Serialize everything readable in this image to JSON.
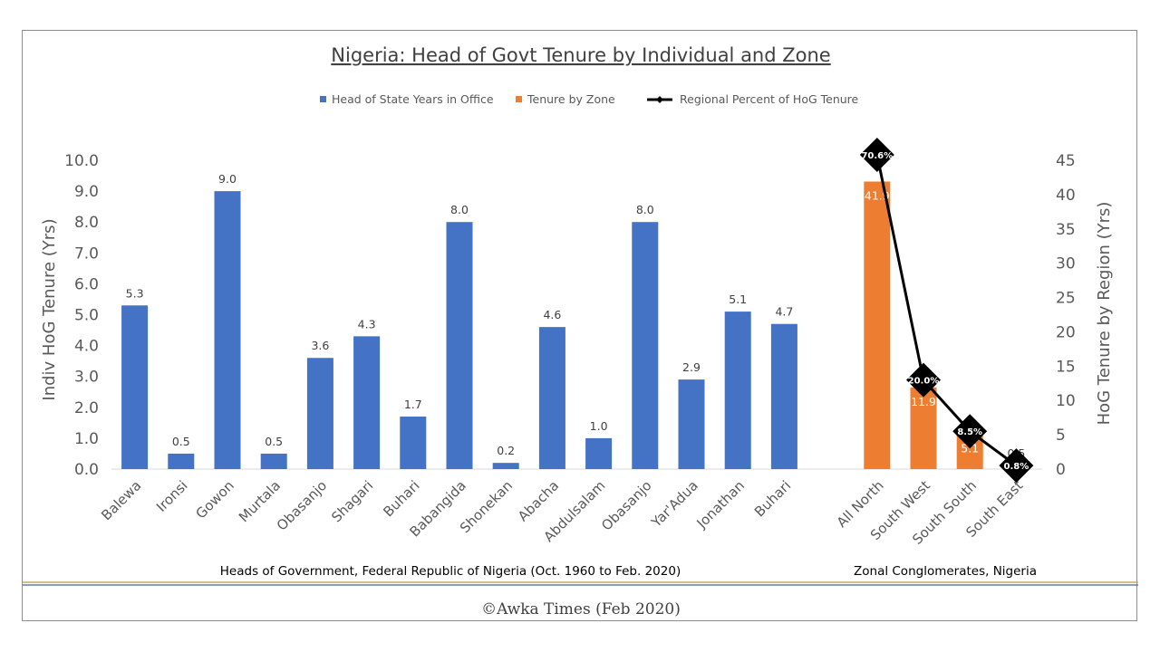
{
  "chart_data": {
    "type": "bar",
    "title": "Nigeria: Head of Govt Tenure by Individual and Zone",
    "legend": [
      {
        "name": "Head of State Years in Office",
        "color": "#4472C4",
        "kind": "bar"
      },
      {
        "name": "Tenure by Zone",
        "color": "#ED7D31",
        "kind": "bar"
      },
      {
        "name": "Regional Percent of HoG Tenure",
        "color": "#000000",
        "kind": "line"
      }
    ],
    "left_axis": {
      "title": "Indiv HoG Tenure (Yrs)",
      "min": 0,
      "max": 10,
      "step": 1,
      "ticks": [
        "0.0",
        "1.0",
        "2.0",
        "3.0",
        "4.0",
        "5.0",
        "6.0",
        "7.0",
        "8.0",
        "9.0",
        "10.0"
      ]
    },
    "right_axis": {
      "title": "HoG Tenure by Region (Yrs)",
      "min": 0,
      "max": 45,
      "step": 5,
      "ticks": [
        "0",
        "5",
        "10",
        "15",
        "20",
        "25",
        "30",
        "35",
        "40",
        "45"
      ]
    },
    "individuals": {
      "group_label": "Heads of Government,  Federal Republic of Nigeria (Oct. 1960 to Feb. 2020)",
      "categories": [
        "Balewa",
        "Ironsi",
        "Gowon",
        "Murtala",
        "Obasanjo",
        "Shagari",
        "Buhari",
        "Babangida",
        "Shonekan",
        "Abacha",
        "Abdulsalam",
        "Obasanjo",
        "Yar'Adua",
        "Jonathan",
        "Buhari"
      ],
      "values": [
        5.3,
        0.5,
        9.0,
        0.5,
        3.6,
        4.3,
        1.7,
        8.0,
        0.2,
        4.6,
        1.0,
        8.0,
        2.9,
        5.1,
        4.7
      ],
      "labels": [
        "5.3",
        "0.5",
        "9.0",
        "0.5",
        "3.6",
        "4.3",
        "1.7",
        "8.0",
        "0.2",
        "4.6",
        "1.0",
        "8.0",
        "2.9",
        "5.1",
        "4.7"
      ]
    },
    "zones": {
      "group_label": "Zonal Conglomerates, Nigeria",
      "categories": [
        "All North",
        "South West",
        "South South",
        "South East"
      ],
      "values": [
        41.9,
        11.9,
        5.1,
        0.5
      ],
      "labels": [
        "41.9",
        "11.9",
        "5.1",
        "0.5"
      ],
      "percent_values": [
        70.6,
        20.0,
        8.5,
        0.8
      ],
      "percent_labels": [
        "70.6%",
        "20.0%",
        "8.5%",
        "0.8%"
      ]
    }
  },
  "footer": {
    "credit": "©Awka Times (Feb 2020)"
  }
}
